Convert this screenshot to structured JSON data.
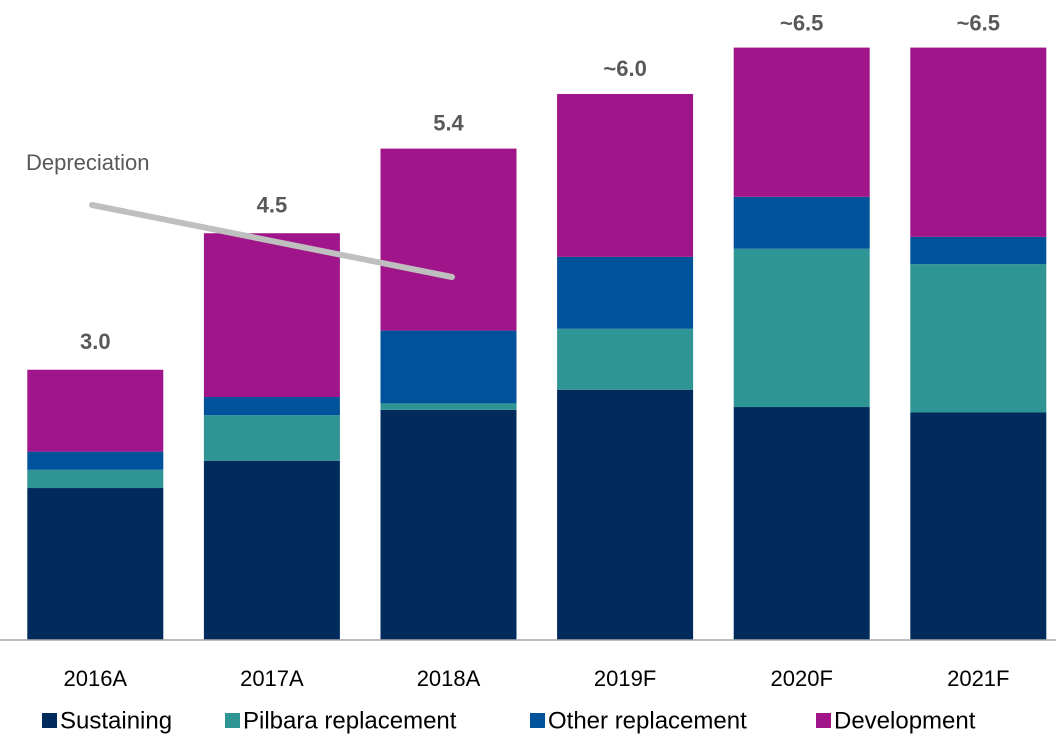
{
  "chart_data": {
    "type": "stacked_bar",
    "categories": [
      "2016A",
      "2017A",
      "2018A",
      "2019F",
      "2020F",
      "2021F"
    ],
    "series": [
      {
        "name": "Sustaining",
        "color": "#002b5c",
        "values": [
          1.67,
          1.97,
          2.53,
          2.75,
          2.56,
          2.5
        ]
      },
      {
        "name": "Pilbara replacement",
        "color": "#2e9494",
        "values": [
          0.2,
          0.5,
          0.07,
          0.67,
          1.74,
          1.63
        ]
      },
      {
        "name": "Other replacement",
        "color": "#00529b",
        "values": [
          0.2,
          0.2,
          0.8,
          0.79,
          0.57,
          0.3
        ]
      },
      {
        "name": "Development",
        "color": "#a0168a",
        "values": [
          0.9,
          1.8,
          2.0,
          1.79,
          1.64,
          2.08
        ]
      }
    ],
    "totals": [
      3.0,
      4.5,
      5.4,
      6.0,
      6.5,
      6.5
    ],
    "total_labels": [
      "3.0",
      "4.5",
      "5.4",
      "~6.0",
      "~6.5",
      "~6.5"
    ],
    "annotation": "Depreciation",
    "ylim": [
      0,
      7
    ]
  }
}
